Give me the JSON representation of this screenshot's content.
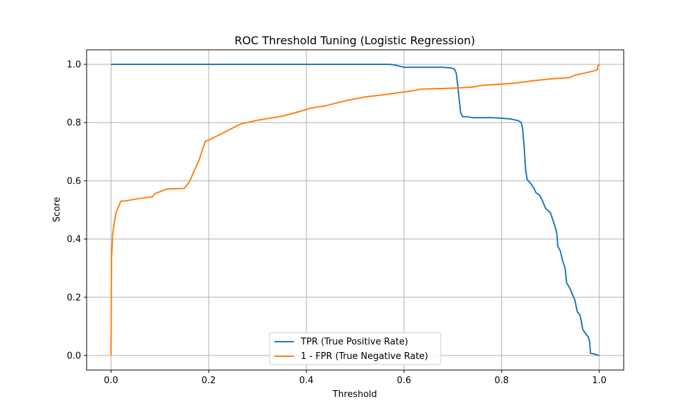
{
  "chart_data": {
    "type": "line",
    "title": "ROC Threshold Tuning (Logistic Regression)",
    "xlabel": "Threshold",
    "ylabel": "Score",
    "xlim": [
      -0.05,
      1.05
    ],
    "ylim": [
      -0.05,
      1.05
    ],
    "xticks": [
      0.0,
      0.2,
      0.4,
      0.6,
      0.8,
      1.0
    ],
    "yticks": [
      0.0,
      0.2,
      0.4,
      0.6,
      0.8,
      1.0
    ],
    "xtick_labels": [
      "0.0",
      "0.2",
      "0.4",
      "0.6",
      "0.8",
      "1.0"
    ],
    "ytick_labels": [
      "0.0",
      "0.2",
      "0.4",
      "0.6",
      "0.8",
      "1.0"
    ],
    "grid": true,
    "legend_position": "lower-center",
    "series": [
      {
        "name": "TPR (True Positive Rate)",
        "color": "#1f77b4",
        "points": [
          [
            0.0,
            1.0
          ],
          [
            0.57,
            1.0
          ],
          [
            0.58,
            0.998
          ],
          [
            0.59,
            0.994
          ],
          [
            0.6,
            0.99
          ],
          [
            0.68,
            0.99
          ],
          [
            0.695,
            0.988
          ],
          [
            0.703,
            0.984
          ],
          [
            0.707,
            0.97
          ],
          [
            0.71,
            0.93
          ],
          [
            0.713,
            0.88
          ],
          [
            0.716,
            0.835
          ],
          [
            0.72,
            0.82
          ],
          [
            0.73,
            0.82
          ],
          [
            0.74,
            0.817
          ],
          [
            0.78,
            0.817
          ],
          [
            0.8,
            0.815
          ],
          [
            0.82,
            0.812
          ],
          [
            0.835,
            0.806
          ],
          [
            0.84,
            0.8
          ],
          [
            0.843,
            0.78
          ],
          [
            0.846,
            0.72
          ],
          [
            0.849,
            0.64
          ],
          [
            0.852,
            0.605
          ],
          [
            0.86,
            0.59
          ],
          [
            0.866,
            0.575
          ],
          [
            0.87,
            0.56
          ],
          [
            0.878,
            0.55
          ],
          [
            0.884,
            0.53
          ],
          [
            0.89,
            0.505
          ],
          [
            0.9,
            0.49
          ],
          [
            0.905,
            0.465
          ],
          [
            0.91,
            0.44
          ],
          [
            0.913,
            0.42
          ],
          [
            0.915,
            0.375
          ],
          [
            0.92,
            0.36
          ],
          [
            0.925,
            0.325
          ],
          [
            0.93,
            0.3
          ],
          [
            0.933,
            0.25
          ],
          [
            0.94,
            0.23
          ],
          [
            0.945,
            0.21
          ],
          [
            0.95,
            0.19
          ],
          [
            0.955,
            0.15
          ],
          [
            0.96,
            0.14
          ],
          [
            0.963,
            0.12
          ],
          [
            0.966,
            0.09
          ],
          [
            0.97,
            0.08
          ],
          [
            0.974,
            0.07
          ],
          [
            0.977,
            0.065
          ],
          [
            0.98,
            0.05
          ],
          [
            0.982,
            0.008
          ],
          [
            0.99,
            0.005
          ],
          [
            1.0,
            0.0
          ]
        ]
      },
      {
        "name": "1 - FPR (True Negative Rate)",
        "color": "#ff7f0e",
        "points": [
          [
            0.0,
            0.0
          ],
          [
            0.001,
            0.33
          ],
          [
            0.003,
            0.41
          ],
          [
            0.006,
            0.45
          ],
          [
            0.01,
            0.49
          ],
          [
            0.015,
            0.51
          ],
          [
            0.02,
            0.53
          ],
          [
            0.03,
            0.531
          ],
          [
            0.05,
            0.537
          ],
          [
            0.07,
            0.542
          ],
          [
            0.085,
            0.545
          ],
          [
            0.09,
            0.556
          ],
          [
            0.115,
            0.572
          ],
          [
            0.15,
            0.574
          ],
          [
            0.16,
            0.595
          ],
          [
            0.18,
            0.67
          ],
          [
            0.193,
            0.735
          ],
          [
            0.2,
            0.74
          ],
          [
            0.23,
            0.765
          ],
          [
            0.265,
            0.795
          ],
          [
            0.3,
            0.808
          ],
          [
            0.35,
            0.822
          ],
          [
            0.38,
            0.835
          ],
          [
            0.41,
            0.85
          ],
          [
            0.44,
            0.858
          ],
          [
            0.48,
            0.875
          ],
          [
            0.52,
            0.888
          ],
          [
            0.56,
            0.896
          ],
          [
            0.59,
            0.903
          ],
          [
            0.6,
            0.905
          ],
          [
            0.62,
            0.91
          ],
          [
            0.635,
            0.915
          ],
          [
            0.7,
            0.918
          ],
          [
            0.74,
            0.922
          ],
          [
            0.76,
            0.928
          ],
          [
            0.8,
            0.932
          ],
          [
            0.83,
            0.936
          ],
          [
            0.86,
            0.943
          ],
          [
            0.9,
            0.95
          ],
          [
            0.94,
            0.955
          ],
          [
            0.95,
            0.963
          ],
          [
            0.97,
            0.97
          ],
          [
            0.99,
            0.978
          ],
          [
            0.996,
            0.982
          ],
          [
            0.997,
            0.995
          ],
          [
            1.0,
            1.0
          ]
        ]
      }
    ]
  }
}
